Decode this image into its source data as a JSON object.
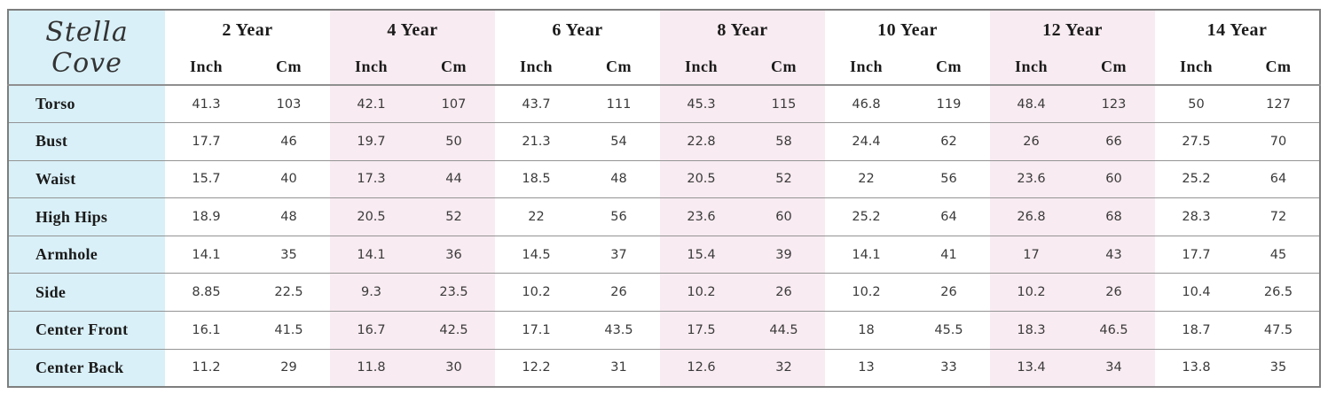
{
  "chart_data": {
    "type": "table",
    "title": "Stella Cove",
    "unit_labels": [
      "Inch",
      "Cm"
    ],
    "accent_colors": {
      "label_column_blue": "#d9f0f8",
      "highlight_band_pink": "#f8ebf1",
      "grid_line_gray": "#8f8f8f"
    },
    "columns": [
      {
        "label": "2 Year",
        "highlighted": false
      },
      {
        "label": "4 Year",
        "highlighted": true
      },
      {
        "label": "6 Year",
        "highlighted": false
      },
      {
        "label": "8 Year",
        "highlighted": true
      },
      {
        "label": "10 Year",
        "highlighted": false
      },
      {
        "label": "12 Year",
        "highlighted": true
      },
      {
        "label": "14 Year",
        "highlighted": false
      }
    ],
    "rows": [
      {
        "label": "Torso",
        "values": [
          [
            41.3,
            103
          ],
          [
            42.1,
            107
          ],
          [
            43.7,
            111
          ],
          [
            45.3,
            115
          ],
          [
            46.8,
            119
          ],
          [
            48.4,
            123
          ],
          [
            50,
            127
          ]
        ]
      },
      {
        "label": "Bust",
        "values": [
          [
            17.7,
            46
          ],
          [
            19.7,
            50
          ],
          [
            21.3,
            54
          ],
          [
            22.8,
            58
          ],
          [
            24.4,
            62
          ],
          [
            26,
            66
          ],
          [
            27.5,
            70
          ]
        ]
      },
      {
        "label": "Waist",
        "values": [
          [
            15.7,
            40
          ],
          [
            17.3,
            44
          ],
          [
            18.5,
            48
          ],
          [
            20.5,
            52
          ],
          [
            22,
            56
          ],
          [
            23.6,
            60
          ],
          [
            25.2,
            64
          ]
        ]
      },
      {
        "label": "High Hips",
        "values": [
          [
            18.9,
            48
          ],
          [
            20.5,
            52
          ],
          [
            22,
            56
          ],
          [
            23.6,
            60
          ],
          [
            25.2,
            64
          ],
          [
            26.8,
            68
          ],
          [
            28.3,
            72
          ]
        ]
      },
      {
        "label": "Armhole",
        "values": [
          [
            14.1,
            35
          ],
          [
            14.1,
            36
          ],
          [
            14.5,
            37
          ],
          [
            15.4,
            39
          ],
          [
            14.1,
            41
          ],
          [
            17,
            43
          ],
          [
            17.7,
            45
          ]
        ]
      },
      {
        "label": "Side",
        "values": [
          [
            8.85,
            22.5
          ],
          [
            9.3,
            23.5
          ],
          [
            10.2,
            26
          ],
          [
            10.2,
            26
          ],
          [
            10.2,
            26
          ],
          [
            10.2,
            26
          ],
          [
            10.4,
            26.5
          ]
        ]
      },
      {
        "label": "Center Front",
        "values": [
          [
            16.1,
            41.5
          ],
          [
            16.7,
            42.5
          ],
          [
            17.1,
            43.5
          ],
          [
            17.5,
            44.5
          ],
          [
            18,
            45.5
          ],
          [
            18.3,
            46.5
          ],
          [
            18.7,
            47.5
          ]
        ]
      },
      {
        "label": "Center Back",
        "values": [
          [
            11.2,
            29
          ],
          [
            11.8,
            30
          ],
          [
            12.2,
            31
          ],
          [
            12.6,
            32
          ],
          [
            13,
            33
          ],
          [
            13.4,
            34
          ],
          [
            13.8,
            35
          ]
        ]
      }
    ]
  }
}
